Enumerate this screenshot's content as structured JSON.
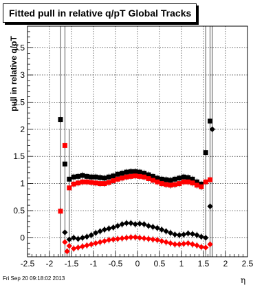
{
  "header": {
    "title": "Fitted pull in relative q/pT  Global Tracks"
  },
  "footer": {
    "timestamp": "Fri Sep 20 09:18:02 2013"
  },
  "chart_data": {
    "type": "scatter",
    "title": "Fitted pull in relative q/pT  Global Tracks",
    "xlabel": "η",
    "ylabel": "pull in relative q/pT",
    "xlim": [
      -2.5,
      2.5
    ],
    "ylim": [
      -0.35,
      3.9
    ],
    "xticks": [
      "-2.5",
      "-2",
      "-1.5",
      "-1",
      "-0.5",
      "0",
      "0.5",
      "1",
      "1.5",
      "2",
      "2.5"
    ],
    "yticks": [
      "0",
      "0.5",
      "1",
      "1.5",
      "2",
      "2.5",
      "3",
      "3.5"
    ],
    "grid": true,
    "series": [
      {
        "name": "",
        "marker": "square",
        "color": "#000000",
        "x": [
          -1.75,
          -1.65,
          -1.55,
          -1.45,
          -1.35,
          -1.25,
          -1.15,
          -1.05,
          -0.95,
          -0.85,
          -0.75,
          -0.65,
          -0.55,
          -0.45,
          -0.35,
          -0.25,
          -0.15,
          -0.05,
          0.05,
          0.15,
          0.25,
          0.35,
          0.45,
          0.55,
          0.65,
          0.75,
          0.85,
          0.95,
          1.05,
          1.15,
          1.25,
          1.35,
          1.45,
          1.55,
          1.65
        ],
        "y": [
          2.18,
          1.36,
          1.08,
          1.12,
          1.13,
          1.15,
          1.13,
          1.12,
          1.12,
          1.11,
          1.1,
          1.12,
          1.14,
          1.17,
          1.19,
          1.21,
          1.22,
          1.22,
          1.21,
          1.19,
          1.16,
          1.13,
          1.1,
          1.08,
          1.07,
          1.06,
          1.08,
          1.1,
          1.12,
          1.11,
          1.08,
          1.03,
          0.99,
          1.57,
          2.15
        ]
      },
      {
        "name": "",
        "marker": "square",
        "color": "#ff0000",
        "x": [
          -1.75,
          -1.65,
          -1.55,
          -1.45,
          -1.35,
          -1.25,
          -1.15,
          -1.05,
          -0.95,
          -0.85,
          -0.75,
          -0.65,
          -0.55,
          -0.45,
          -0.35,
          -0.25,
          -0.15,
          -0.05,
          0.05,
          0.15,
          0.25,
          0.35,
          0.45,
          0.55,
          0.65,
          0.75,
          0.85,
          0.95,
          1.05,
          1.15,
          1.25,
          1.35,
          1.45,
          1.55,
          1.65
        ],
        "y": [
          0.49,
          1.7,
          0.92,
          0.99,
          1.01,
          1.03,
          1.03,
          1.02,
          1.01,
          1.0,
          1.0,
          1.02,
          1.05,
          1.08,
          1.1,
          1.12,
          1.13,
          1.14,
          1.13,
          1.12,
          1.09,
          1.06,
          1.03,
          1.0,
          0.98,
          0.97,
          0.98,
          1.0,
          1.03,
          1.03,
          1.01,
          0.97,
          0.94,
          1.03,
          1.07
        ]
      },
      {
        "name": "",
        "marker": "diamond",
        "color": "#000000",
        "x": [
          -1.65,
          -1.55,
          -1.45,
          -1.35,
          -1.25,
          -1.15,
          -1.05,
          -0.95,
          -0.85,
          -0.75,
          -0.65,
          -0.55,
          -0.45,
          -0.35,
          -0.25,
          -0.15,
          -0.05,
          0.05,
          0.15,
          0.25,
          0.35,
          0.45,
          0.55,
          0.65,
          0.75,
          0.85,
          0.95,
          1.05,
          1.15,
          1.25,
          1.35,
          1.45,
          1.55,
          1.65,
          1.7
        ],
        "y": [
          0.1,
          -0.03,
          0.0,
          -0.02,
          0.0,
          0.02,
          0.05,
          0.09,
          0.12,
          0.15,
          0.17,
          0.19,
          0.22,
          0.25,
          0.27,
          0.27,
          0.25,
          0.26,
          0.25,
          0.22,
          0.2,
          0.18,
          0.15,
          0.12,
          0.09,
          0.06,
          0.05,
          0.06,
          0.08,
          0.07,
          0.05,
          0.02,
          0.0,
          0.58,
          2.0
        ]
      },
      {
        "name": "",
        "marker": "diamond",
        "color": "#ff0000",
        "x": [
          -1.65,
          -1.6,
          -1.55,
          -1.45,
          -1.35,
          -1.25,
          -1.15,
          -1.05,
          -0.95,
          -0.85,
          -0.75,
          -0.65,
          -0.55,
          -0.45,
          -0.35,
          -0.25,
          -0.15,
          -0.05,
          0.05,
          0.15,
          0.25,
          0.35,
          0.45,
          0.55,
          0.65,
          0.75,
          0.85,
          0.95,
          1.05,
          1.15,
          1.25,
          1.35,
          1.45,
          1.55,
          1.65
        ],
        "y": [
          -0.08,
          -0.25,
          -0.15,
          -0.2,
          -0.18,
          -0.16,
          -0.14,
          -0.12,
          -0.1,
          -0.08,
          -0.06,
          -0.04,
          -0.03,
          -0.02,
          -0.01,
          0.0,
          0.01,
          0.01,
          0.0,
          -0.01,
          -0.02,
          -0.03,
          -0.04,
          -0.06,
          -0.08,
          -0.1,
          -0.12,
          -0.12,
          -0.11,
          -0.1,
          -0.12,
          -0.14,
          -0.17,
          -0.18,
          -0.12
        ]
      }
    ]
  }
}
